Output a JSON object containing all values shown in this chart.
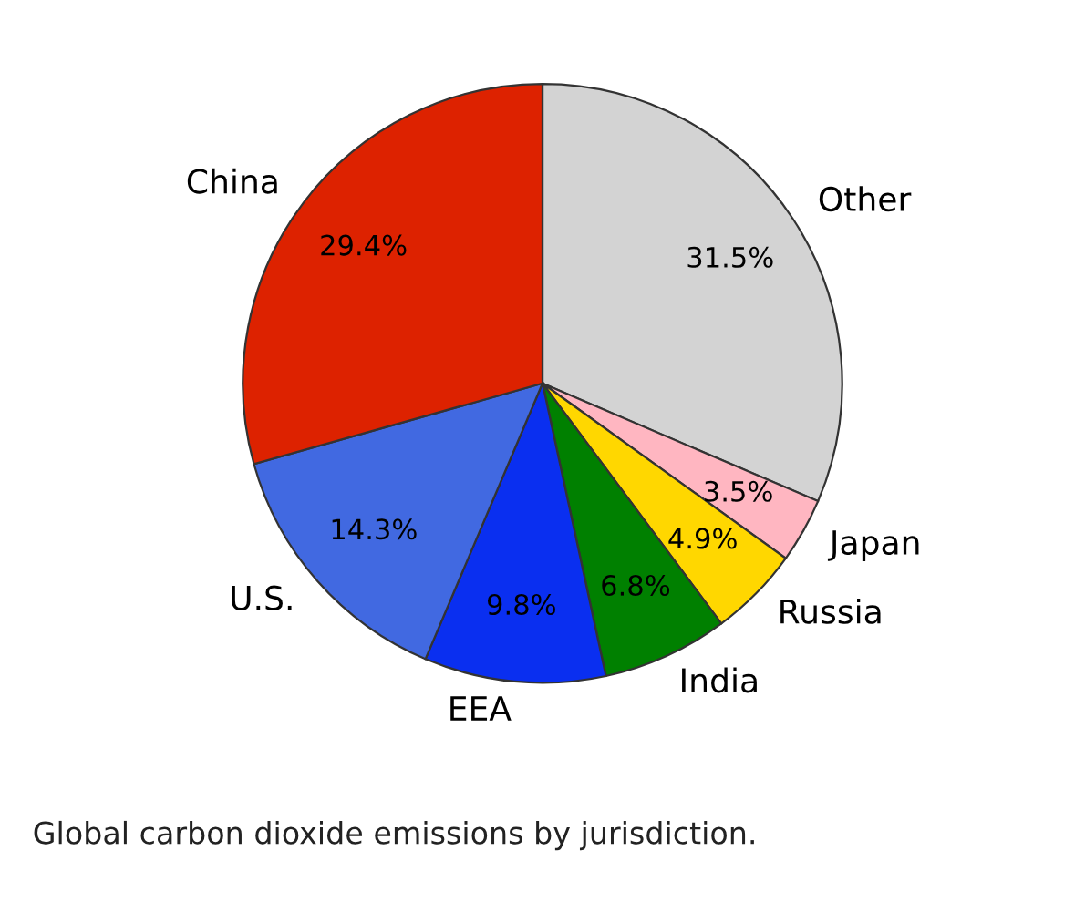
{
  "chart_data": {
    "type": "pie",
    "categories": [
      "Other",
      "Japan",
      "Russia",
      "India",
      "EEA",
      "U.S.",
      "China"
    ],
    "values": [
      31.5,
      3.5,
      4.9,
      6.8,
      9.8,
      14.3,
      29.4
    ],
    "value_labels": [
      "31.5%",
      "3.5%",
      "4.9%",
      "6.8%",
      "9.8%",
      "14.3%",
      "29.4%"
    ],
    "colors": [
      "#d3d3d3",
      "#ffb6c1",
      "#ffd700",
      "#008000",
      "#0a2ff0",
      "#4169e1",
      "#dd2200"
    ],
    "annotations": [
      "Global carbon dioxide emissions by jurisdiction."
    ]
  }
}
